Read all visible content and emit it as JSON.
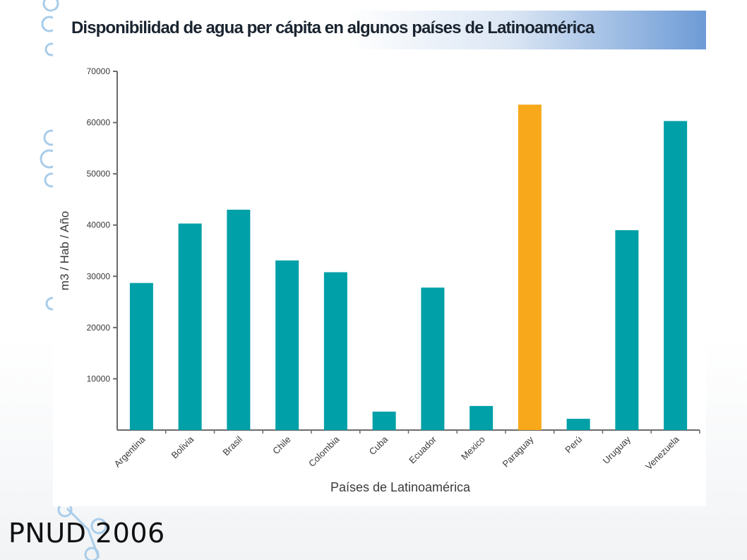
{
  "source": "PNUD 2006",
  "colors": {
    "bar": "#00a0a8",
    "highlight": "#f7a81b",
    "axis": "#6b6b6b",
    "text": "#3a3a3a"
  },
  "chart_data": {
    "type": "bar",
    "title": "Disponibilidad de agua per cápita en algunos países de Latinoamérica",
    "xlabel": "Países de Latinoamérica",
    "ylabel": "m3 / Hab / Año",
    "ylim": [
      0,
      70000
    ],
    "yticks": [
      10000,
      20000,
      30000,
      40000,
      50000,
      60000,
      70000
    ],
    "grid": false,
    "legend": "none",
    "highlight_category": "Paraguay",
    "categories": [
      "Argentina",
      "Bolivia",
      "Brasil",
      "Chile",
      "Colombia",
      "Cuba",
      "Ecuador",
      "Mexico",
      "Paraguay",
      "Perú",
      "Uruguay",
      "Venezuela"
    ],
    "values": [
      28700,
      40300,
      43000,
      33100,
      30800,
      3600,
      27800,
      4700,
      63500,
      2200,
      39000,
      60300
    ]
  }
}
